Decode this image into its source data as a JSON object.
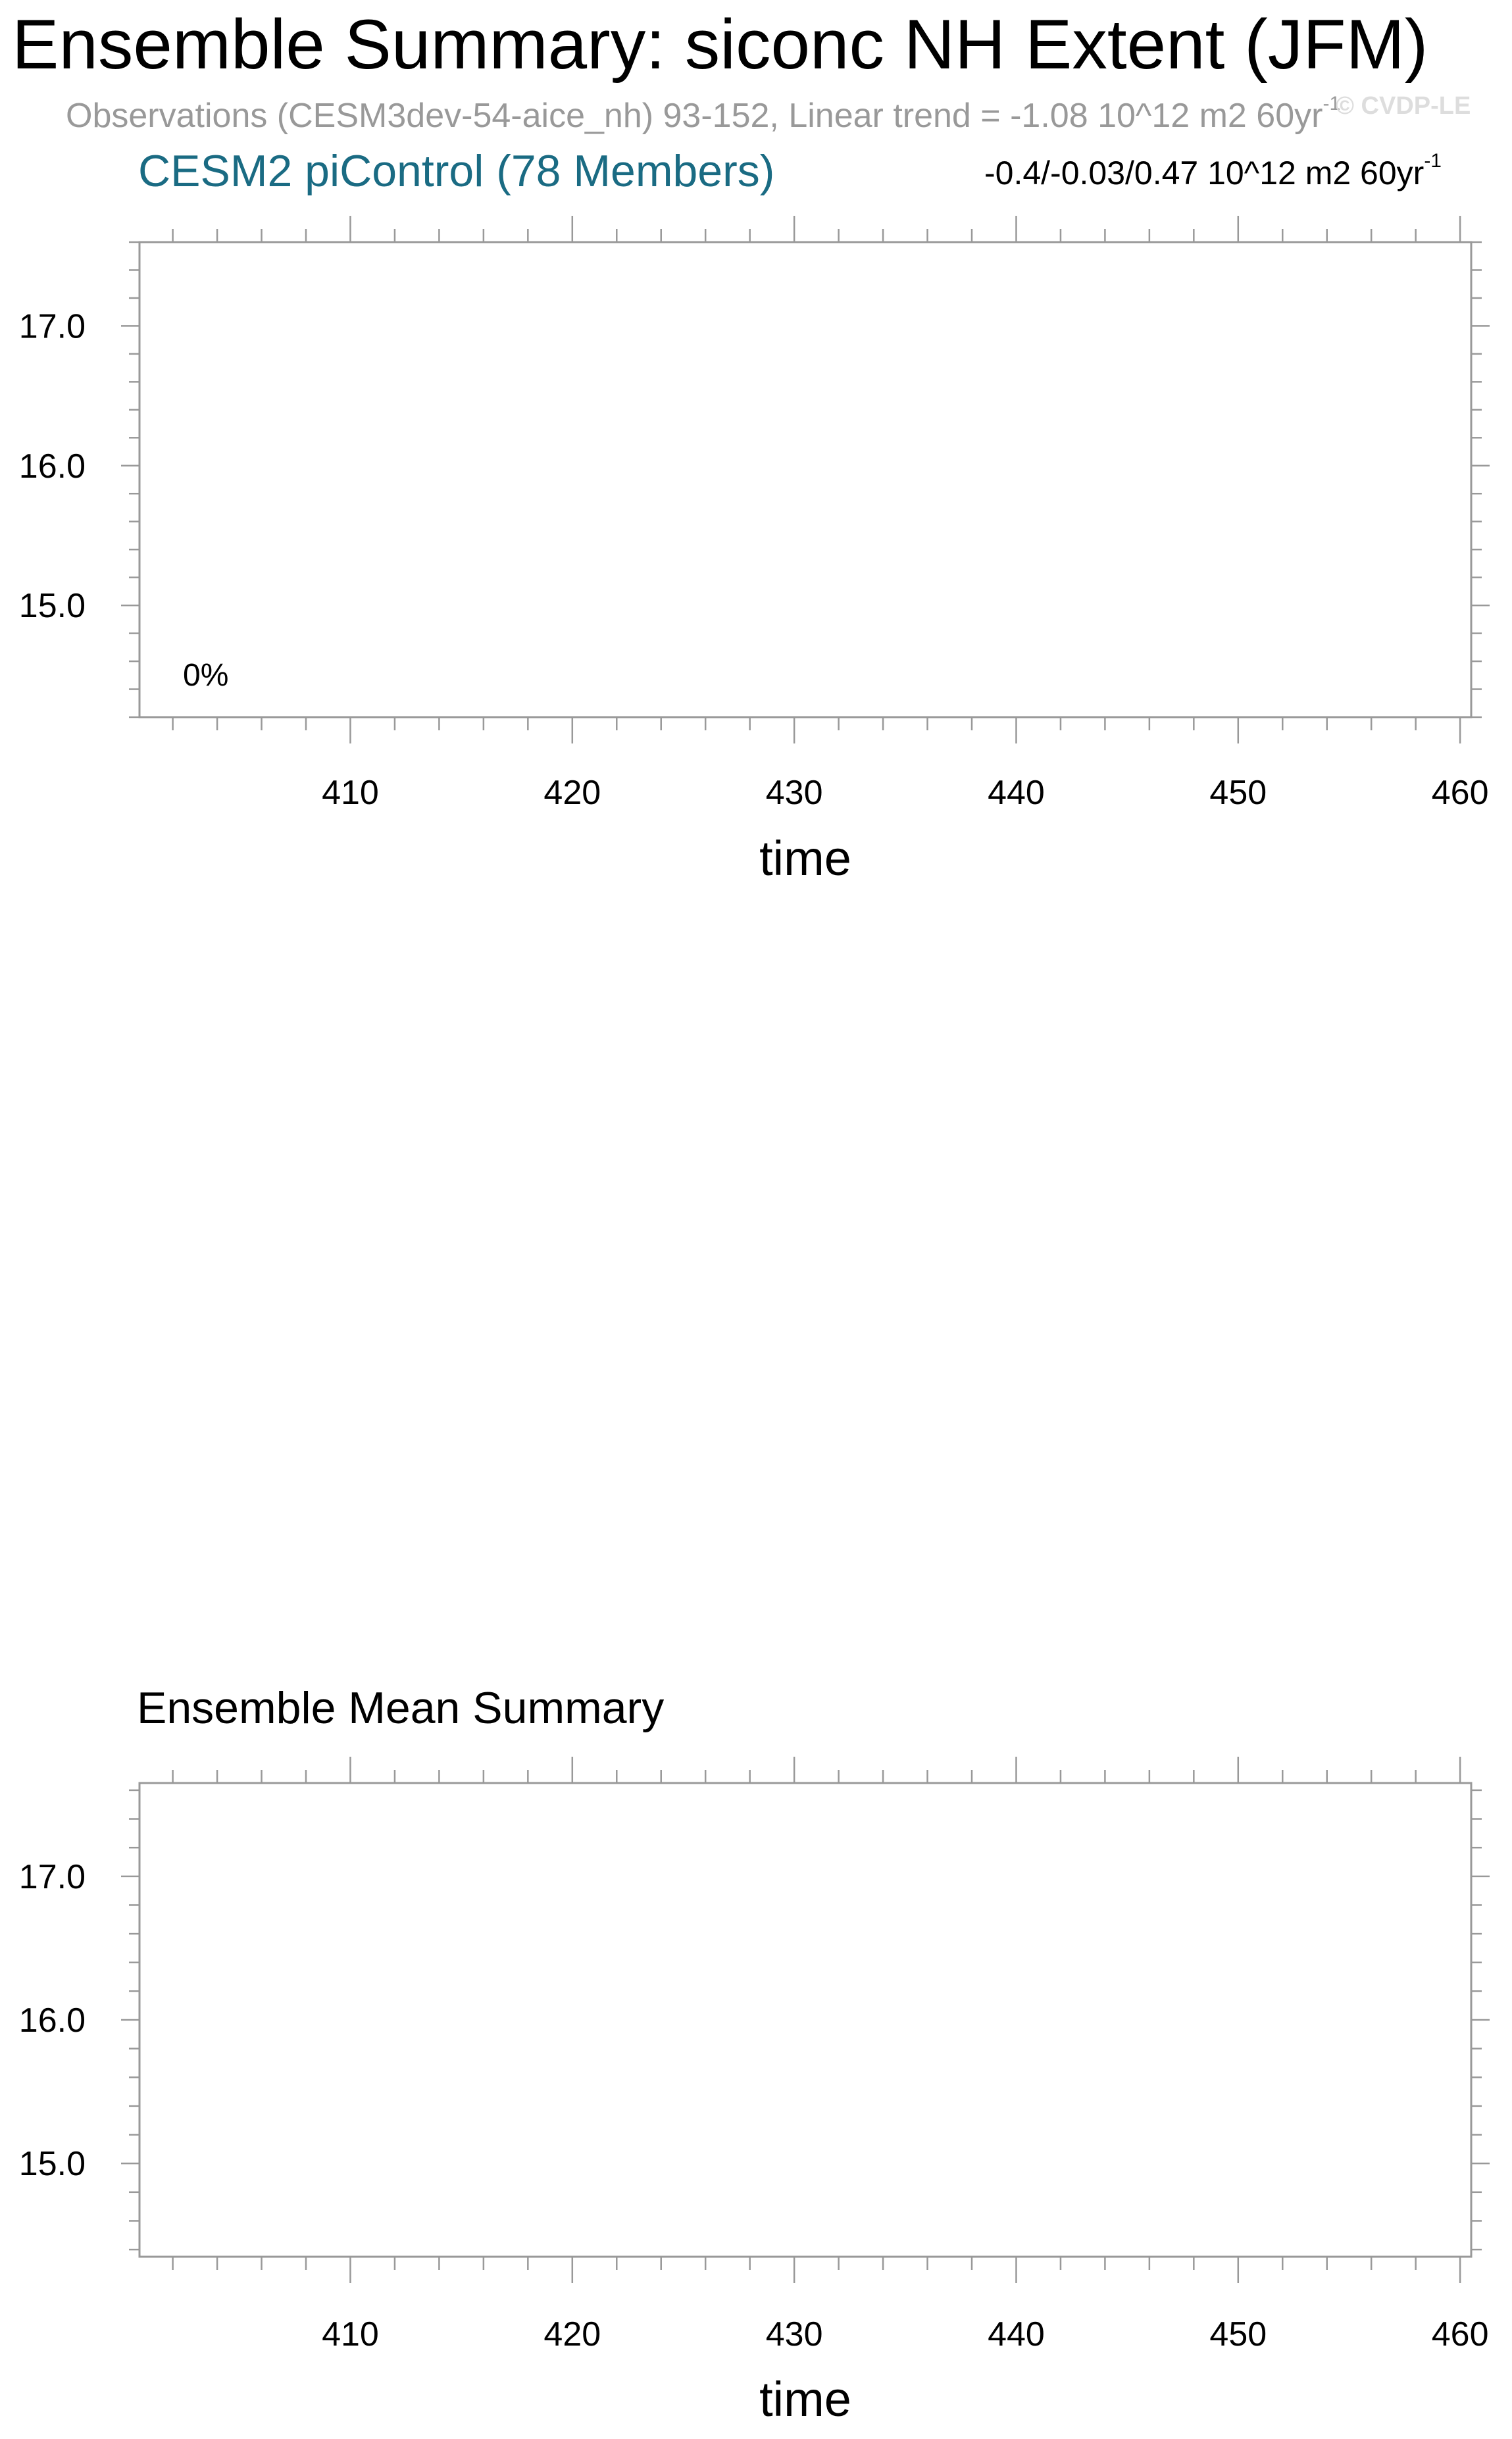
{
  "title": "Ensemble Summary: siconc NH Extent (JFM)",
  "observations": {
    "text": "Observations (CESM3dev-54-aice_nh) 93-152, Linear trend = -1.08 10^12 m2 60yr",
    "exponent": "-1"
  },
  "copyright": "© CVDP-LE",
  "colors": {
    "subtitle": "#1a6b83",
    "observations_text": "#999999",
    "frame": "#999999"
  },
  "chart_data": [
    {
      "type": "line",
      "panel": "top",
      "title": "CESM2 piControl (78 Members)",
      "range_label": "-0.4/-0.03/0.47 10^12 m2 60yr",
      "range_exponent": "-1",
      "annotation": "0%",
      "xlabel": "time",
      "ylabel": "",
      "xlim": [
        400.5,
        460.5
      ],
      "ylim": [
        14.2,
        17.6
      ],
      "x_ticks": [
        410,
        420,
        430,
        440,
        450,
        460
      ],
      "y_ticks": [
        15.0,
        16.0,
        17.0
      ],
      "x_tick_labels": [
        "410",
        "420",
        "430",
        "440",
        "450",
        "460"
      ],
      "y_tick_labels": [
        "15.0",
        "16.0",
        "17.0"
      ],
      "series": []
    },
    {
      "type": "line",
      "panel": "bottom",
      "title": "Ensemble Mean Summary",
      "xlabel": "time",
      "ylabel": "",
      "xlim": [
        400.5,
        460.5
      ],
      "ylim": [
        14.35,
        17.65
      ],
      "x_ticks": [
        410,
        420,
        430,
        440,
        450,
        460
      ],
      "y_ticks": [
        15.0,
        16.0,
        17.0
      ],
      "x_tick_labels": [
        "410",
        "420",
        "430",
        "440",
        "450",
        "460"
      ],
      "y_tick_labels": [
        "15.0",
        "16.0",
        "17.0"
      ],
      "series": []
    }
  ]
}
